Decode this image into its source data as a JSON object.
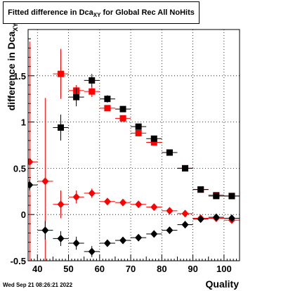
{
  "title": {
    "main": "Fitted difference in Dca",
    "sub": "XY",
    "suffix": " for Global Rec All NoHits"
  },
  "timestamp": "Wed Sep 21 08:26:21 2022",
  "chart_data": {
    "type": "scatter",
    "xlabel": "Quality",
    "ylabel": {
      "main": "difference in Dca",
      "sub": "XY"
    },
    "xlim": [
      37,
      105
    ],
    "ylim": [
      -0.5,
      2.0
    ],
    "xticks": [
      40,
      50,
      60,
      70,
      80,
      90,
      100
    ],
    "yticks": [
      -0.5,
      0,
      0.5,
      1,
      1.5
    ],
    "ytick_labels": [
      "-0.5",
      "0",
      "0.5",
      "1",
      "1.5"
    ],
    "grid": true,
    "colors": {
      "red": "#ff0000",
      "black": "#000000"
    },
    "series": [
      {
        "marker": "square",
        "color": "red",
        "points": [
          {
            "x": 47.5,
            "y": 1.52,
            "yerr": 0.27
          },
          {
            "x": 52.5,
            "y": 1.34,
            "yerr": 0.06
          },
          {
            "x": 57.5,
            "y": 1.33,
            "yerr": 0.06
          },
          {
            "x": 62.5,
            "y": 1.15,
            "yerr": 0.03
          },
          {
            "x": 67.5,
            "y": 1.04,
            "yerr": 0.03
          },
          {
            "x": 72.5,
            "y": 0.88,
            "yerr": 0.02
          },
          {
            "x": 77.5,
            "y": 0.78,
            "yerr": 0.02
          },
          {
            "x": 82.5,
            "y": 0.67,
            "yerr": 0.02
          },
          {
            "x": 87.5,
            "y": 0.5,
            "yerr": 0.02
          },
          {
            "x": 92.5,
            "y": 0.27,
            "yerr": 0.02
          },
          {
            "x": 97.5,
            "y": 0.21,
            "yerr": 0.02
          },
          {
            "x": 102.5,
            "y": 0.2,
            "yerr": 0.02
          }
        ]
      },
      {
        "marker": "square",
        "color": "black",
        "points": [
          {
            "x": 47.5,
            "y": 0.94,
            "yerr": 0.14
          },
          {
            "x": 52.5,
            "y": 1.27,
            "yerr": 0.1
          },
          {
            "x": 57.5,
            "y": 1.45,
            "yerr": 0.07
          },
          {
            "x": 62.5,
            "y": 1.25,
            "yerr": 0.04
          },
          {
            "x": 67.5,
            "y": 1.14,
            "yerr": 0.03
          },
          {
            "x": 72.5,
            "y": 0.95,
            "yerr": 0.02
          },
          {
            "x": 77.5,
            "y": 0.82,
            "yerr": 0.02
          },
          {
            "x": 82.5,
            "y": 0.67,
            "yerr": 0.02
          },
          {
            "x": 87.5,
            "y": 0.5,
            "yerr": 0.02
          },
          {
            "x": 92.5,
            "y": 0.27,
            "yerr": 0.02
          },
          {
            "x": 97.5,
            "y": 0.2,
            "yerr": 0.02
          },
          {
            "x": 102.5,
            "y": 0.2,
            "yerr": 0.02
          }
        ]
      },
      {
        "marker": "diamond",
        "color": "red",
        "points": [
          {
            "x": 37.5,
            "y": 0.57,
            "yerr": 1.3
          },
          {
            "x": 42.5,
            "y": 0.36,
            "yerr": 0.9
          },
          {
            "x": 47.5,
            "y": 0.11,
            "yerr": 0.15
          },
          {
            "x": 52.5,
            "y": 0.19,
            "yerr": 0.07
          },
          {
            "x": 57.5,
            "y": 0.23,
            "yerr": 0.05
          },
          {
            "x": 62.5,
            "y": 0.14,
            "yerr": 0.03
          },
          {
            "x": 67.5,
            "y": 0.13,
            "yerr": 0.02
          },
          {
            "x": 72.5,
            "y": 0.11,
            "yerr": 0.02
          },
          {
            "x": 77.5,
            "y": 0.08,
            "yerr": 0.02
          },
          {
            "x": 82.5,
            "y": 0.04,
            "yerr": 0.01
          },
          {
            "x": 87.5,
            "y": 0.01,
            "yerr": 0.01
          },
          {
            "x": 92.5,
            "y": -0.04,
            "yerr": 0.01
          },
          {
            "x": 97.5,
            "y": -0.04,
            "yerr": 0.01
          },
          {
            "x": 102.5,
            "y": -0.06,
            "yerr": 0.01
          }
        ]
      },
      {
        "marker": "diamond",
        "color": "black",
        "points": [
          {
            "x": 37.5,
            "y": 0.32,
            "yerr": 0.06
          },
          {
            "x": 42.5,
            "y": -0.17,
            "yerr": 0.1
          },
          {
            "x": 47.5,
            "y": -0.26,
            "yerr": 0.08
          },
          {
            "x": 52.5,
            "y": -0.31,
            "yerr": 0.07
          },
          {
            "x": 57.5,
            "y": -0.4,
            "yerr": 0.06
          },
          {
            "x": 62.5,
            "y": -0.31,
            "yerr": 0.03
          },
          {
            "x": 67.5,
            "y": -0.28,
            "yerr": 0.02
          },
          {
            "x": 72.5,
            "y": -0.25,
            "yerr": 0.02
          },
          {
            "x": 77.5,
            "y": -0.21,
            "yerr": 0.02
          },
          {
            "x": 82.5,
            "y": -0.17,
            "yerr": 0.01
          },
          {
            "x": 87.5,
            "y": -0.11,
            "yerr": 0.01
          },
          {
            "x": 92.5,
            "y": -0.05,
            "yerr": 0.01
          },
          {
            "x": 97.5,
            "y": -0.03,
            "yerr": 0.01
          },
          {
            "x": 102.5,
            "y": -0.04,
            "yerr": 0.01
          }
        ]
      }
    ]
  }
}
